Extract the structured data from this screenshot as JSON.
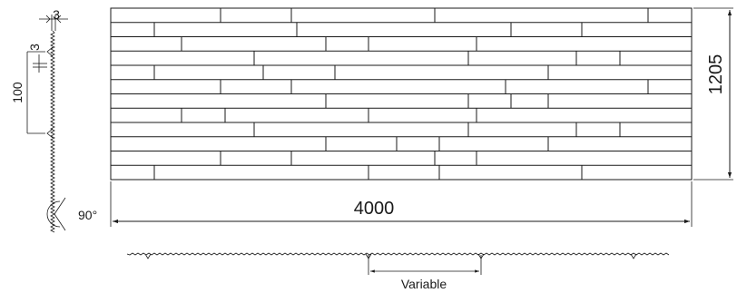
{
  "dimensions": {
    "panel_width": "4000",
    "panel_height": "1205",
    "edge_thickness": "3",
    "groove_depth": "3",
    "row_pitch": "100",
    "angle": "90°",
    "joint_spacing": "Variable"
  },
  "panel": {
    "rows": 12,
    "row_joints": [
      [
        243,
        321,
        479,
        714
      ],
      [
        170,
        327,
        563,
        641
      ],
      [
        200,
        359,
        406,
        525
      ],
      [
        280,
        516,
        635,
        683
      ],
      [
        170,
        290,
        369,
        604
      ],
      [
        243,
        321,
        557,
        714
      ],
      [
        359,
        516,
        563,
        604
      ],
      [
        200,
        248,
        406,
        525
      ],
      [
        280,
        516,
        635,
        683
      ],
      [
        359,
        437,
        484,
        604
      ],
      [
        243,
        321,
        479,
        525
      ],
      [
        170,
        406,
        484,
        641
      ]
    ]
  }
}
